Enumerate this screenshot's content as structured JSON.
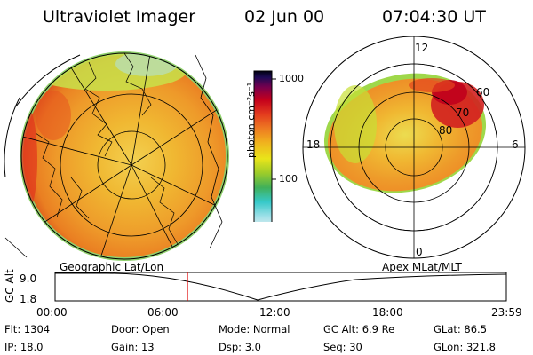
{
  "header": {
    "instrument": "Ultraviolet Imager",
    "date": "02 Jun 00",
    "time": "07:04:30 UT"
  },
  "colorbar": {
    "unit_label": "photon cm⁻²s⁻¹",
    "ticks": [
      "1000",
      "100"
    ],
    "scale": "log",
    "colors": [
      "#f2f2f2",
      "#9fe0e8",
      "#36c9c9",
      "#40b05a",
      "#9ccc2a",
      "#e9e51a",
      "#f0b41e",
      "#ee7a22",
      "#e33b1e",
      "#c4001c",
      "#75004e",
      "#1e0a55",
      "#000010"
    ]
  },
  "geo_map": {
    "label": "Geographic Lat/Lon"
  },
  "polar_map": {
    "label": "Apex MLat/MLT",
    "mlt_labels": [
      "12",
      "18",
      "6",
      "0"
    ],
    "mlat_labels": [
      "60",
      "70",
      "80"
    ]
  },
  "timeline": {
    "axis_label": "GC Alt",
    "y_ticks": [
      "9.0",
      "1.8"
    ],
    "x_ticks": [
      "00:00",
      "06:00",
      "12:00",
      "18:00",
      "23:59"
    ],
    "marker_time": "07:04",
    "accent": "#e00000"
  },
  "info": {
    "row1": [
      {
        "key": "Flt:",
        "value": "1304"
      },
      {
        "key": "Door:",
        "value": "Open"
      },
      {
        "key": "Mode:",
        "value": "Normal"
      },
      {
        "key": "GC Alt:",
        "value": "6.9 Re"
      },
      {
        "key": "GLat:",
        "value": "86.5"
      }
    ],
    "row2": [
      {
        "key": "IP:",
        "value": "18.0"
      },
      {
        "key": "Gain:",
        "value": "13"
      },
      {
        "key": "Dsp:",
        "value": "3.0"
      },
      {
        "key": "Seq:",
        "value": "30"
      },
      {
        "key": "GLon:",
        "value": "321.8"
      }
    ]
  }
}
